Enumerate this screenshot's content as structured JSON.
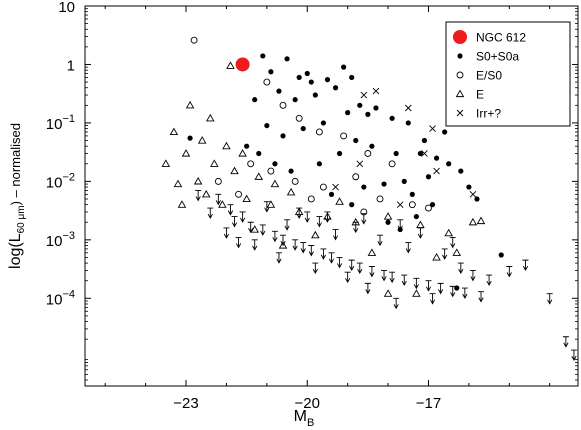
{
  "chart_data": {
    "type": "scatter",
    "xlabel_main": "M",
    "xlabel_sub": "B",
    "ylabel_pre": "log(L",
    "ylabel_sub": "60 μm",
    "ylabel_post": ")  – normalised",
    "xlim": [
      -25.5,
      -13.3
    ],
    "ylim_log10": [
      -5.5,
      1.0
    ],
    "x_ticks": [
      -23,
      -20,
      -17
    ],
    "x_tick_labels": [
      "−23",
      "−20",
      "−17"
    ],
    "y_ticks": [
      {
        "exp": 1,
        "base": "10",
        "sup": ""
      },
      {
        "exp": 0,
        "base": "1",
        "sup": ""
      },
      {
        "exp": -1,
        "base": "10",
        "sup": "−1"
      },
      {
        "exp": -2,
        "base": "10",
        "sup": "−2"
      },
      {
        "exp": -3,
        "base": "10",
        "sup": "−3"
      },
      {
        "exp": -4,
        "base": "10",
        "sup": "−4"
      }
    ],
    "legend": [
      {
        "label": "NGC 612",
        "marker": "big-dot"
      },
      {
        "label": "S0+S0a",
        "marker": "dot"
      },
      {
        "label": "E/S0",
        "marker": "circle"
      },
      {
        "label": "E",
        "marker": "triangle"
      },
      {
        "label": "Irr+?",
        "marker": "cross"
      }
    ],
    "highlight": {
      "name": "NGC 612",
      "x": -21.6,
      "y": 1.0,
      "color": "#ee1c1c"
    },
    "series": [
      {
        "name": "S0+S0a",
        "marker": "dot",
        "points": [
          [
            -21.1,
            1.4
          ],
          [
            -20.9,
            0.75
          ],
          [
            -20.5,
            1.25
          ],
          [
            -20.2,
            0.6
          ],
          [
            -19.9,
            0.5
          ],
          [
            -19.5,
            0.55
          ],
          [
            -19.3,
            0.4
          ],
          [
            -20.7,
            0.35
          ],
          [
            -20.3,
            0.25
          ],
          [
            -19.8,
            0.3
          ],
          [
            -18.9,
            0.6
          ],
          [
            -18.7,
            0.2
          ],
          [
            -19.0,
            0.15
          ],
          [
            -18.3,
            0.18
          ],
          [
            -17.9,
            0.12
          ],
          [
            -17.5,
            0.1
          ],
          [
            -19.6,
            0.1
          ],
          [
            -20.1,
            0.08
          ],
          [
            -20.6,
            0.06
          ],
          [
            -21.0,
            0.09
          ],
          [
            -18.8,
            0.05
          ],
          [
            -18.4,
            0.04
          ],
          [
            -17.8,
            0.03
          ],
          [
            -17.2,
            0.03
          ],
          [
            -16.8,
            0.025
          ],
          [
            -16.5,
            0.02
          ],
          [
            -16.2,
            0.015
          ],
          [
            -17.0,
            0.012
          ],
          [
            -17.6,
            0.01
          ],
          [
            -18.1,
            0.009
          ],
          [
            -19.2,
            0.03
          ],
          [
            -19.7,
            0.02
          ],
          [
            -20.4,
            0.015
          ],
          [
            -18.6,
            0.008
          ],
          [
            -17.4,
            0.006
          ],
          [
            -16.9,
            0.004
          ],
          [
            -16.0,
            0.008
          ],
          [
            -15.8,
            0.005
          ],
          [
            -18.0,
            0.002
          ],
          [
            -17.3,
            0.0025
          ],
          [
            -22.9,
            0.055
          ],
          [
            -21.5,
            0.04
          ],
          [
            -21.2,
            0.03
          ],
          [
            -20.8,
            0.02
          ],
          [
            -19.4,
            0.006
          ],
          [
            -18.9,
            0.004
          ],
          [
            -17.7,
            0.0015
          ],
          [
            -15.2,
            0.00055
          ],
          [
            -16.3,
            0.00015
          ],
          [
            -20.0,
            0.7
          ],
          [
            -19.1,
            0.9
          ],
          [
            -18.5,
            0.14
          ],
          [
            -17.1,
            0.05
          ],
          [
            -16.6,
            0.07
          ],
          [
            -21.3,
            0.25
          ]
        ]
      },
      {
        "name": "E/S0",
        "marker": "circle",
        "points": [
          [
            -22.8,
            2.6
          ],
          [
            -21.0,
            0.5
          ],
          [
            -20.6,
            0.2
          ],
          [
            -20.2,
            0.12
          ],
          [
            -19.7,
            0.07
          ],
          [
            -19.1,
            0.06
          ],
          [
            -18.5,
            0.03
          ],
          [
            -17.9,
            0.02
          ],
          [
            -21.4,
            0.02
          ],
          [
            -20.9,
            0.015
          ],
          [
            -20.3,
            0.01
          ],
          [
            -19.6,
            0.008
          ],
          [
            -18.8,
            0.012
          ],
          [
            -18.2,
            0.005
          ],
          [
            -17.4,
            0.004
          ],
          [
            -21.7,
            0.006
          ],
          [
            -22.2,
            0.01
          ],
          [
            -19.9,
            0.005
          ],
          [
            -18.6,
            0.003
          ],
          [
            -17.0,
            0.0035
          ]
        ]
      },
      {
        "name": "E",
        "marker": "triangle",
        "points": [
          [
            -21.9,
            0.95
          ],
          [
            -22.9,
            0.2
          ],
          [
            -22.4,
            0.12
          ],
          [
            -23.3,
            0.07
          ],
          [
            -22.6,
            0.05
          ],
          [
            -22.0,
            0.04
          ],
          [
            -21.6,
            0.03
          ],
          [
            -23.0,
            0.03
          ],
          [
            -22.3,
            0.02
          ],
          [
            -21.8,
            0.015
          ],
          [
            -21.2,
            0.012
          ],
          [
            -20.8,
            0.009
          ],
          [
            -22.7,
            0.01
          ],
          [
            -23.5,
            0.02
          ],
          [
            -23.2,
            0.009
          ],
          [
            -22.5,
            0.006
          ],
          [
            -21.5,
            0.005
          ],
          [
            -20.9,
            0.004
          ],
          [
            -20.2,
            0.003
          ],
          [
            -19.5,
            0.0025
          ],
          [
            -18.8,
            0.002
          ],
          [
            -18.0,
            0.0025
          ],
          [
            -17.2,
            0.0018
          ],
          [
            -16.5,
            0.0013
          ],
          [
            -15.9,
            0.002
          ],
          [
            -16.8,
            0.0005
          ],
          [
            -18.4,
            0.0006
          ],
          [
            -19.8,
            0.0012
          ],
          [
            -22.1,
            0.004
          ],
          [
            -23.1,
            0.004
          ],
          [
            -18.0,
            0.00012
          ],
          [
            -17.3,
            0.00012
          ],
          [
            -20.6,
            0.0008
          ],
          [
            -21.3,
            0.0015
          ],
          [
            -16.3,
            0.0006
          ],
          [
            -15.7,
            0.0021
          ],
          [
            -19.2,
            0.0045
          ],
          [
            -20.4,
            0.0065
          ]
        ]
      },
      {
        "name": "Irr+?",
        "marker": "cross",
        "points": [
          [
            -18.6,
            0.3
          ],
          [
            -17.5,
            0.18
          ],
          [
            -16.9,
            0.08
          ],
          [
            -17.1,
            0.03
          ],
          [
            -18.7,
            0.02
          ],
          [
            -16.8,
            0.015
          ],
          [
            -15.9,
            0.006
          ],
          [
            -17.7,
            0.004
          ],
          [
            -19.3,
            0.008
          ],
          [
            -18.3,
            0.35
          ]
        ]
      },
      {
        "name": "upper-limit",
        "marker": "arrow",
        "points": [
          [
            -22.7,
            0.007
          ],
          [
            -22.2,
            0.006
          ],
          [
            -21.9,
            0.004
          ],
          [
            -21.6,
            0.003
          ],
          [
            -21.4,
            0.002
          ],
          [
            -21.1,
            0.0018
          ],
          [
            -20.8,
            0.0014
          ],
          [
            -20.6,
            0.0012
          ],
          [
            -20.3,
            0.001
          ],
          [
            -20.1,
            0.0009
          ],
          [
            -19.9,
            0.0008
          ],
          [
            -19.6,
            0.0007
          ],
          [
            -19.4,
            0.0006
          ],
          [
            -19.2,
            0.0005
          ],
          [
            -18.9,
            0.00045
          ],
          [
            -18.7,
            0.0004
          ],
          [
            -18.4,
            0.00035
          ],
          [
            -18.1,
            0.0003
          ],
          [
            -17.9,
            0.00028
          ],
          [
            -17.6,
            0.00025
          ],
          [
            -17.3,
            0.00022
          ],
          [
            -17.0,
            0.0002
          ],
          [
            -16.7,
            0.00018
          ],
          [
            -16.4,
            0.00016
          ],
          [
            -16.1,
            0.00015
          ],
          [
            -15.7,
            0.00013
          ],
          [
            -21.3,
            0.001
          ],
          [
            -20.7,
            0.0006
          ],
          [
            -19.8,
            0.0004
          ],
          [
            -19.0,
            0.00028
          ],
          [
            -18.5,
            0.00018
          ],
          [
            -17.8,
            0.0001
          ],
          [
            -16.9,
            0.00012
          ],
          [
            -22.0,
            0.0016
          ],
          [
            -21.7,
            0.0011
          ],
          [
            -15.5,
            0.00025
          ],
          [
            -15.0,
            0.00035
          ],
          [
            -14.6,
            0.00045
          ],
          [
            -14.0,
            0.00012
          ],
          [
            -13.6,
            2.2e-05
          ],
          [
            -13.4,
            1.3e-05
          ],
          [
            -22.4,
            0.0035
          ],
          [
            -21.8,
            0.0025
          ],
          [
            -20.5,
            0.0022
          ],
          [
            -19.3,
            0.0015
          ],
          [
            -18.2,
            0.0012
          ],
          [
            -17.5,
            0.0009
          ],
          [
            -16.6,
            0.0007
          ],
          [
            -16.2,
            0.0004
          ],
          [
            -15.9,
            0.0003
          ],
          [
            -20.0,
            0.003
          ],
          [
            -19.7,
            0.0025
          ],
          [
            -18.8,
            0.002
          ],
          [
            -17.2,
            0.0016
          ],
          [
            -16.4,
            0.0011
          ],
          [
            -21.0,
            0.0045
          ],
          [
            -20.2,
            0.0035
          ],
          [
            -19.5,
            0.003
          ],
          [
            -18.6,
            0.0028
          ],
          [
            -17.7,
            0.0022
          ]
        ]
      }
    ]
  }
}
